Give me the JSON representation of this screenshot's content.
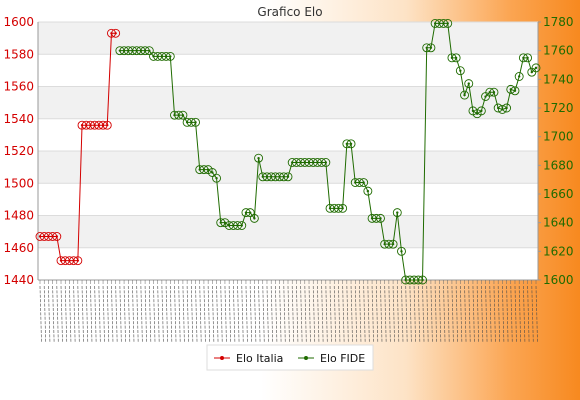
{
  "chart_data": {
    "type": "line",
    "title": "Grafico Elo",
    "left_axis": {
      "min": 1440,
      "max": 1600,
      "step": 20,
      "color": "#d40000"
    },
    "right_axis": {
      "min": 1600,
      "max": 1780,
      "step": 20,
      "color": "#1f6b00"
    },
    "series": [
      {
        "name": "Elo Italia",
        "axis": "left",
        "color": "#d40000",
        "points": [
          [
            0,
            1467
          ],
          [
            1,
            1467
          ],
          [
            2,
            1467
          ],
          [
            3,
            1467
          ],
          [
            4,
            1467
          ],
          [
            5,
            1452
          ],
          [
            6,
            1452
          ],
          [
            7,
            1452
          ],
          [
            8,
            1452
          ],
          [
            9,
            1452
          ],
          [
            10,
            1536
          ],
          [
            11,
            1536
          ],
          [
            12,
            1536
          ],
          [
            13,
            1536
          ],
          [
            14,
            1536
          ],
          [
            15,
            1536
          ],
          [
            16,
            1536
          ],
          [
            17,
            1593
          ],
          [
            18,
            1593
          ]
        ]
      },
      {
        "name": "Elo FIDE",
        "axis": "right",
        "color": "#1f6b00",
        "points": [
          [
            19,
            1760
          ],
          [
            20,
            1760
          ],
          [
            21,
            1760
          ],
          [
            22,
            1760
          ],
          [
            23,
            1760
          ],
          [
            24,
            1760
          ],
          [
            25,
            1760
          ],
          [
            26,
            1760
          ],
          [
            27,
            1756
          ],
          [
            28,
            1756
          ],
          [
            29,
            1756
          ],
          [
            30,
            1756
          ],
          [
            31,
            1756
          ],
          [
            32,
            1715
          ],
          [
            33,
            1715
          ],
          [
            34,
            1715
          ],
          [
            35,
            1710
          ],
          [
            36,
            1710
          ],
          [
            37,
            1710
          ],
          [
            38,
            1677
          ],
          [
            39,
            1677
          ],
          [
            40,
            1677
          ],
          [
            41,
            1675
          ],
          [
            42,
            1671
          ],
          [
            43,
            1640
          ],
          [
            44,
            1640
          ],
          [
            45,
            1638
          ],
          [
            46,
            1638
          ],
          [
            47,
            1638
          ],
          [
            48,
            1638
          ],
          [
            49,
            1647
          ],
          [
            50,
            1647
          ],
          [
            51,
            1643
          ],
          [
            52,
            1685
          ],
          [
            53,
            1672
          ],
          [
            54,
            1672
          ],
          [
            55,
            1672
          ],
          [
            56,
            1672
          ],
          [
            57,
            1672
          ],
          [
            58,
            1672
          ],
          [
            59,
            1672
          ],
          [
            60,
            1682
          ],
          [
            61,
            1682
          ],
          [
            62,
            1682
          ],
          [
            63,
            1682
          ],
          [
            64,
            1682
          ],
          [
            65,
            1682
          ],
          [
            66,
            1682
          ],
          [
            67,
            1682
          ],
          [
            68,
            1682
          ],
          [
            69,
            1650
          ],
          [
            70,
            1650
          ],
          [
            71,
            1650
          ],
          [
            72,
            1650
          ],
          [
            73,
            1695
          ],
          [
            74,
            1695
          ],
          [
            75,
            1668
          ],
          [
            76,
            1668
          ],
          [
            77,
            1668
          ],
          [
            78,
            1662
          ],
          [
            79,
            1643
          ],
          [
            80,
            1643
          ],
          [
            81,
            1643
          ],
          [
            82,
            1625
          ],
          [
            83,
            1625
          ],
          [
            84,
            1625
          ],
          [
            85,
            1647
          ],
          [
            86,
            1620
          ],
          [
            87,
            1600
          ],
          [
            88,
            1600
          ],
          [
            89,
            1600
          ],
          [
            90,
            1600
          ],
          [
            91,
            1600
          ],
          [
            92,
            1762
          ],
          [
            93,
            1762
          ],
          [
            94,
            1779
          ],
          [
            95,
            1779
          ],
          [
            96,
            1779
          ],
          [
            97,
            1779
          ],
          [
            98,
            1755
          ],
          [
            99,
            1755
          ],
          [
            100,
            1746
          ],
          [
            101,
            1729
          ],
          [
            102,
            1737
          ],
          [
            103,
            1718
          ],
          [
            104,
            1716
          ],
          [
            105,
            1718
          ],
          [
            106,
            1728
          ],
          [
            107,
            1731
          ],
          [
            108,
            1731
          ],
          [
            109,
            1720
          ],
          [
            110,
            1719
          ],
          [
            111,
            1720
          ],
          [
            112,
            1733
          ],
          [
            113,
            1732
          ],
          [
            114,
            1742
          ],
          [
            115,
            1755
          ],
          [
            116,
            1755
          ],
          [
            117,
            1745
          ],
          [
            118,
            1748
          ]
        ]
      }
    ],
    "x_count": 119,
    "x_tick_labels_illegible": true,
    "grid": "horizontal",
    "legend": "bottom-center",
    "legend_items": [
      "Elo Italia",
      "Elo FIDE"
    ]
  }
}
